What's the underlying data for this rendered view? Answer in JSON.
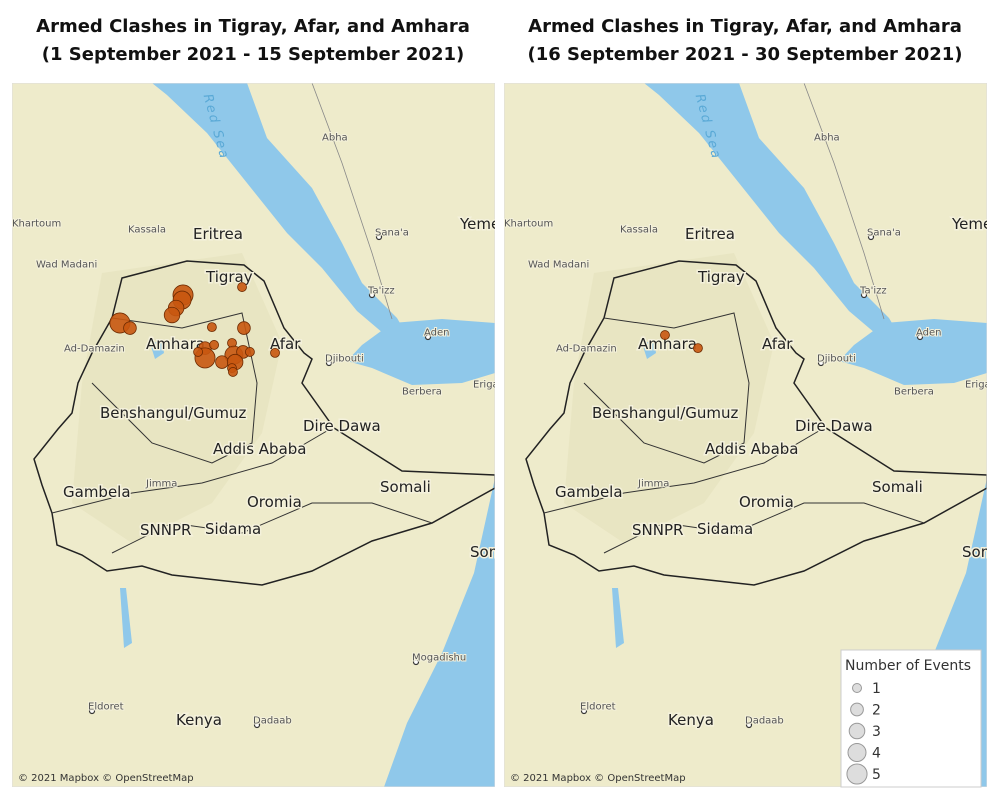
{
  "maps": [
    {
      "title": "Armed Clashes in Tigray, Afar, and Amhara",
      "subtitle": "(1 September 2021 - 15 September 2021)",
      "attribution": "© 2021 Mapbox © OpenStreetMap",
      "points": [
        {
          "lon": 38.04,
          "lat": 13.59,
          "events": 5
        },
        {
          "lon": 38.01,
          "lat": 13.43,
          "events": 4
        },
        {
          "lon": 37.82,
          "lat": 13.18,
          "events": 3
        },
        {
          "lon": 37.69,
          "lat": 12.96,
          "events": 3
        },
        {
          "lon": 36.03,
          "lat": 12.71,
          "events": 5
        },
        {
          "lon": 36.35,
          "lat": 12.55,
          "events": 2
        },
        {
          "lon": 39.92,
          "lat": 13.84,
          "events": 1
        },
        {
          "lon": 38.96,
          "lat": 12.58,
          "events": 1
        },
        {
          "lon": 39.98,
          "lat": 12.55,
          "events": 2
        },
        {
          "lon": 38.74,
          "lat": 11.92,
          "events": 2
        },
        {
          "lon": 39.03,
          "lat": 12.02,
          "events": 1
        },
        {
          "lon": 38.74,
          "lat": 11.61,
          "events": 5
        },
        {
          "lon": 39.6,
          "lat": 12.08,
          "events": 1
        },
        {
          "lon": 39.66,
          "lat": 11.7,
          "events": 4
        },
        {
          "lon": 39.95,
          "lat": 11.8,
          "events": 2
        },
        {
          "lon": 40.17,
          "lat": 11.8,
          "events": 1
        },
        {
          "lon": 39.28,
          "lat": 11.48,
          "events": 2
        },
        {
          "lon": 39.7,
          "lat": 11.48,
          "events": 3
        },
        {
          "lon": 39.6,
          "lat": 11.29,
          "events": 1
        },
        {
          "lon": 40.97,
          "lat": 11.77,
          "events": 1
        },
        {
          "lon": 39.63,
          "lat": 11.17,
          "events": 1
        },
        {
          "lon": 38.52,
          "lat": 11.8,
          "events": 1
        }
      ]
    },
    {
      "title": "Armed Clashes in Tigray, Afar, and Amhara",
      "subtitle": "(16 September 2021 - 30 September 2021)",
      "attribution": "© 2021 Mapbox © OpenStreetMap",
      "points": [
        {
          "lon": 37.72,
          "lat": 12.33,
          "events": 1
        },
        {
          "lon": 38.77,
          "lat": 11.92,
          "events": 1
        }
      ]
    }
  ],
  "places": [
    "Eritrea",
    "Tigray",
    "Amhara",
    "Afar",
    "Djibouti",
    "Benshangul/Gumuz",
    "Dire Dawa",
    "Addis Ababa",
    "Gambela",
    "Jimma",
    "Oromia",
    "Somali",
    "SNNPR",
    "Sidama",
    "Somali",
    "Kenya",
    "Yemen",
    "Kassala",
    "Wad Madani",
    "Ad-Damazin",
    "Abha",
    "Sana'a",
    "Ta'izz",
    "Aden",
    "Berbera",
    "Erigavo",
    "Mogadishu",
    "Eldoret",
    "Dadaab",
    "Khartoum",
    "Red Sea"
  ],
  "legend": {
    "title": "Number of Events",
    "sizes": [
      1,
      2,
      3,
      4,
      5
    ]
  }
}
